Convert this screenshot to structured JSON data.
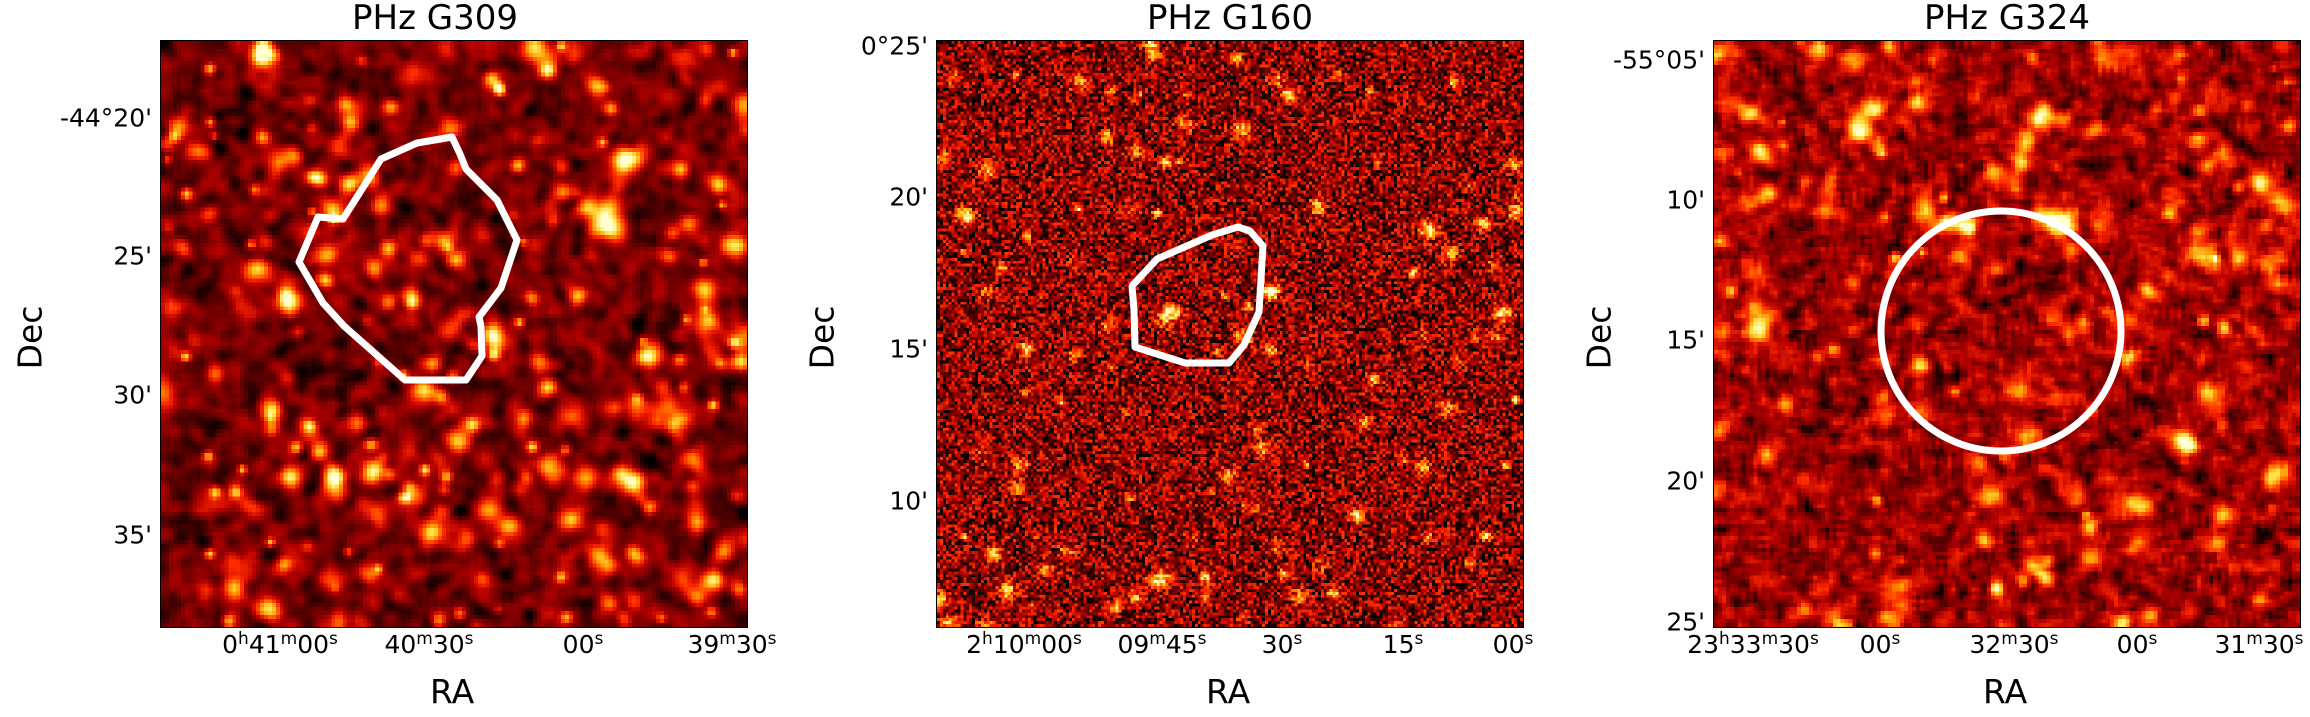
{
  "colormap": [
    "#000000",
    "#5a0000",
    "#b40000",
    "#ff2a00",
    "#ff8c00",
    "#ffdc3c",
    "#ffffd0"
  ],
  "contour_color": "#ffffff",
  "panels": [
    {
      "title": "PHz G309",
      "xlabel": "RA",
      "ylabel": "Dec",
      "region_shape": "polygon",
      "yticks": [
        "-44°20'",
        "25'",
        "30'",
        "35'"
      ],
      "xticks": [
        {
          "main": "0",
          "sup1": "h",
          "mid": "41",
          "sup2": "m",
          "tail": "00",
          "sup3": "s"
        },
        {
          "main": "",
          "sup1": "",
          "mid": "40",
          "sup2": "m",
          "tail": "30",
          "sup3": "s"
        },
        {
          "main": "",
          "sup1": "",
          "mid": "",
          "sup2": "",
          "tail": "00",
          "sup3": "s"
        },
        {
          "main": "",
          "sup1": "",
          "mid": "39",
          "sup2": "m",
          "tail": "30",
          "sup3": "s"
        }
      ]
    },
    {
      "title": "PHz G160",
      "xlabel": "RA",
      "ylabel": "Dec",
      "region_shape": "polygon",
      "yticks": [
        "0°25'",
        "20'",
        "15'",
        "10'"
      ],
      "xticks": [
        {
          "main": "2",
          "sup1": "h",
          "mid": "10",
          "sup2": "m",
          "tail": "00",
          "sup3": "s"
        },
        {
          "main": "",
          "sup1": "",
          "mid": "09",
          "sup2": "m",
          "tail": "45",
          "sup3": "s"
        },
        {
          "main": "",
          "sup1": "",
          "mid": "",
          "sup2": "",
          "tail": "30",
          "sup3": "s"
        },
        {
          "main": "",
          "sup1": "",
          "mid": "",
          "sup2": "",
          "tail": "15",
          "sup3": "s"
        },
        {
          "main": "",
          "sup1": "",
          "mid": "",
          "sup2": "",
          "tail": "00",
          "sup3": "s"
        }
      ]
    },
    {
      "title": "PHz G324",
      "xlabel": "RA",
      "ylabel": "Dec",
      "region_shape": "circle",
      "yticks": [
        "-55°05'",
        "10'",
        "15'",
        "20'",
        "25'"
      ],
      "xticks": [
        {
          "main": "23",
          "sup1": "h",
          "mid": "33",
          "sup2": "m",
          "tail": "30",
          "sup3": "s"
        },
        {
          "main": "",
          "sup1": "",
          "mid": "",
          "sup2": "",
          "tail": "00",
          "sup3": "s"
        },
        {
          "main": "",
          "sup1": "",
          "mid": "32",
          "sup2": "m",
          "tail": "30",
          "sup3": "s"
        },
        {
          "main": "",
          "sup1": "",
          "mid": "",
          "sup2": "",
          "tail": "00",
          "sup3": "s"
        },
        {
          "main": "",
          "sup1": "",
          "mid": "31",
          "sup2": "m",
          "tail": "30",
          "sup3": "s"
        }
      ]
    }
  ]
}
